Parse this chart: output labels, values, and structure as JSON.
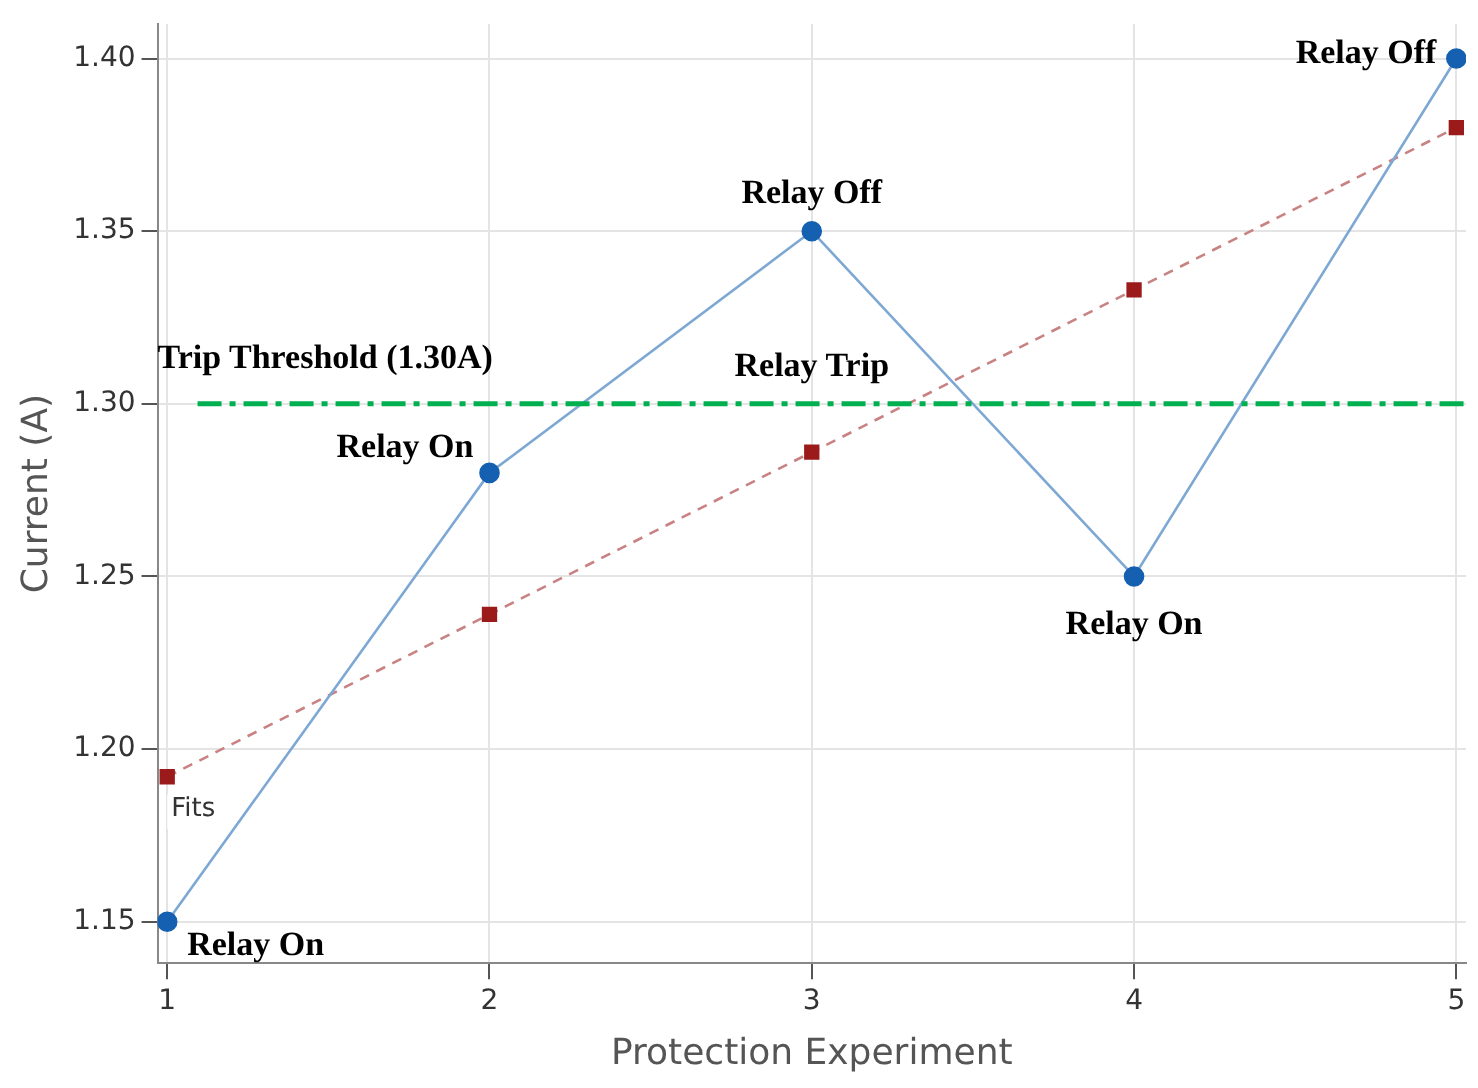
{
  "chart_data": {
    "type": "line",
    "xlabel": "Protection Experiment",
    "ylabel": "Current (A)",
    "x": [
      1,
      2,
      3,
      4,
      5
    ],
    "series": [
      {
        "color": "#1560b0",
        "values": [
          1.15,
          1.28,
          1.35,
          1.25,
          1.4
        ],
        "marker": "circle",
        "line_style": "solid"
      },
      {
        "name": "Fits",
        "color": "#9b1b1b",
        "values": [
          1.192,
          1.239,
          1.286,
          1.333,
          1.38
        ],
        "marker": "square",
        "line_style": "dashed"
      }
    ],
    "xlim": [
      0.97,
      5.03
    ],
    "xticks": [
      1,
      2,
      3,
      4,
      5
    ],
    "ylim": [
      1.138,
      1.41
    ],
    "yticks": [
      1.15,
      {
        "value": 1.2,
        "label": "1.20"
      },
      1.25,
      {
        "value": 1.3,
        "label": "1.30"
      },
      1.35,
      {
        "value": 1.4,
        "label": "1.40"
      }
    ],
    "grid": true,
    "legend": false,
    "ref_lines": [
      {
        "axis": "y",
        "value": 1.3,
        "label": "Trip Threshold (1.30A)",
        "color": "#00b050",
        "line_style": "dashed"
      }
    ],
    "annotations": [
      {
        "text": "Relay On",
        "x": 1,
        "y": 1.15
      },
      {
        "text": "Relay On",
        "x": 2,
        "y": 1.28
      },
      {
        "text": "Relay Off",
        "x": 3,
        "y": 1.35
      },
      {
        "text": "Relay Trip",
        "x": 3,
        "y": 1.3
      },
      {
        "text": "Relay On",
        "x": 4,
        "y": 1.25
      },
      {
        "text": "Relay Off",
        "x": 5,
        "y": 1.4
      }
    ]
  }
}
